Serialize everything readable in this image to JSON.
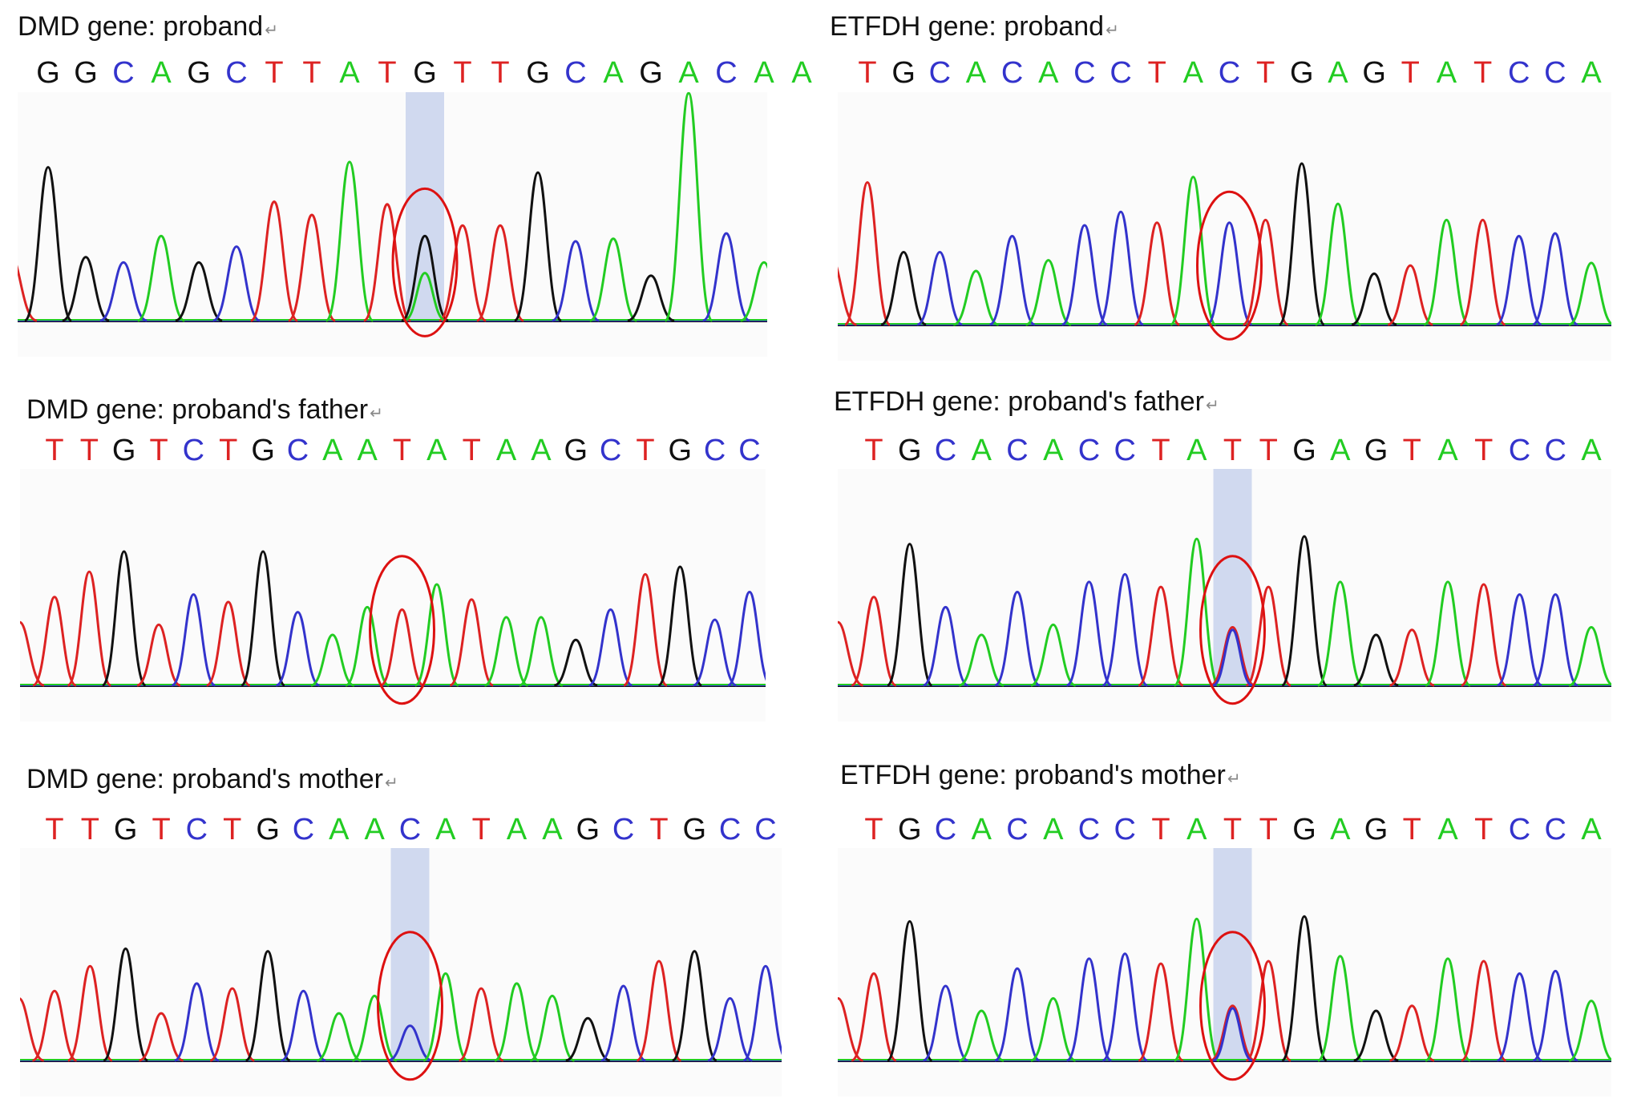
{
  "colors": {
    "A": "#22cc22",
    "C": "#3333cc",
    "G": "#111111",
    "T": "#dd2222",
    "highlight": "#c8d2ec",
    "circle": "#dd1111"
  },
  "panels": [
    {
      "title": "DMD gene: proband",
      "bases": [
        "G",
        "G",
        "C",
        "A",
        "G",
        "C",
        "T",
        "T",
        "A",
        "T",
        "G",
        "T",
        "T",
        "G",
        "C",
        "A",
        "G",
        "A",
        "C",
        "A",
        "A"
      ],
      "highlight": true,
      "marked_index": 10
    },
    {
      "title": "ETFDH gene: proband",
      "bases": [
        "T",
        "G",
        "C",
        "A",
        "C",
        "A",
        "C",
        "C",
        "T",
        "A",
        "C",
        "T",
        "G",
        "A",
        "G",
        "T",
        "A",
        "T",
        "C",
        "C",
        "A"
      ],
      "highlight": false,
      "marked_index": 10
    },
    {
      "title": "DMD gene: proband's father",
      "bases": [
        "T",
        "T",
        "G",
        "T",
        "C",
        "T",
        "G",
        "C",
        "A",
        "A",
        "T",
        "A",
        "T",
        "A",
        "A",
        "G",
        "C",
        "T",
        "G",
        "C",
        "C"
      ],
      "highlight": false,
      "marked_index": 10
    },
    {
      "title": "ETFDH gene: proband's father",
      "bases": [
        "T",
        "G",
        "C",
        "A",
        "C",
        "A",
        "C",
        "C",
        "T",
        "A",
        "T",
        "T",
        "G",
        "A",
        "G",
        "T",
        "A",
        "T",
        "C",
        "C",
        "A"
      ],
      "highlight": true,
      "marked_index": 10
    },
    {
      "title": "DMD gene: proband's mother",
      "bases": [
        "T",
        "T",
        "G",
        "T",
        "C",
        "T",
        "G",
        "C",
        "A",
        "A",
        "C",
        "A",
        "T",
        "A",
        "A",
        "G",
        "C",
        "T",
        "G",
        "C",
        "C"
      ],
      "highlight": true,
      "marked_index": 10
    },
    {
      "title": "ETFDH gene: proband's mother",
      "bases": [
        "T",
        "G",
        "C",
        "A",
        "C",
        "A",
        "C",
        "C",
        "T",
        "A",
        "T",
        "T",
        "G",
        "A",
        "G",
        "T",
        "A",
        "T",
        "C",
        "C",
        "A"
      ],
      "highlight": true,
      "marked_index": 10
    }
  ],
  "return_mark": "↵"
}
